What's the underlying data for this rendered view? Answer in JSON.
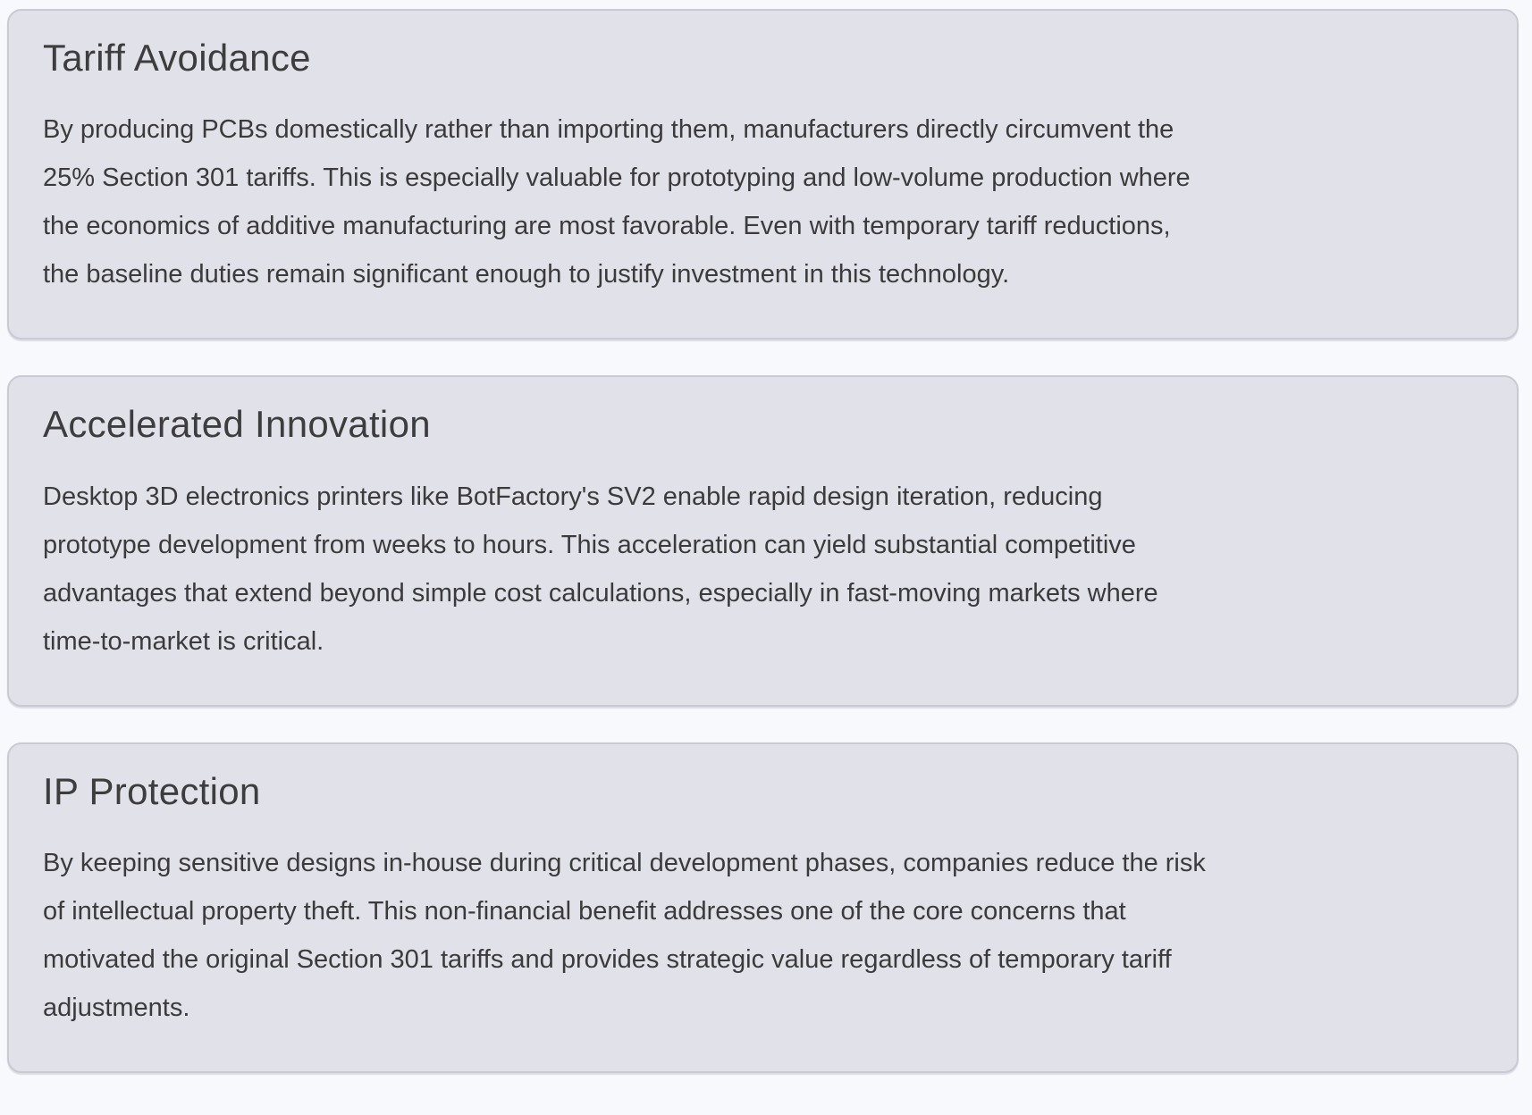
{
  "colors": {
    "page_background": "#f8f9fc",
    "card_background": "#e1e1e9",
    "card_border": "#c9cad4",
    "heading_text": "#3d3d3d",
    "body_text": "#3b3b3b"
  },
  "cards": [
    {
      "title": "Tariff Avoidance",
      "body": "By producing PCBs domestically rather than importing them, manufacturers directly circumvent the\n25% Section 301 tariffs. This is especially valuable for prototyping and low-volume production where\nthe economics of additive manufacturing are most favorable. Even with temporary tariff reductions,\nthe baseline duties remain significant enough to justify investment in this technology."
    },
    {
      "title": "Accelerated Innovation",
      "body": "Desktop 3D electronics printers like BotFactory's SV2 enable rapid design iteration, reducing\nprototype development from weeks to hours. This acceleration can yield substantial competitive\nadvantages that extend beyond simple cost calculations, especially in fast-moving markets where\ntime-to-market is critical."
    },
    {
      "title": "IP Protection",
      "body": "By keeping sensitive designs in-house during critical development phases, companies reduce the risk\nof intellectual property theft. This non-financial benefit addresses one of the core concerns that\nmotivated the original Section 301 tariffs and provides strategic value regardless of temporary tariff\nadjustments."
    }
  ]
}
